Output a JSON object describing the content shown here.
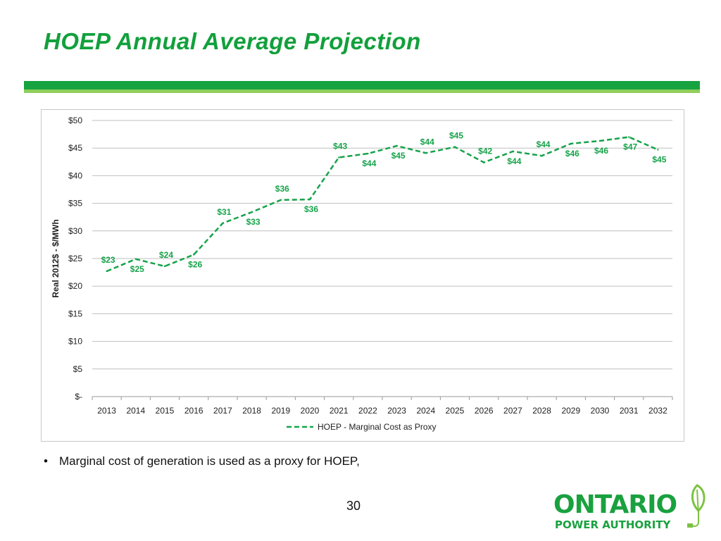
{
  "slide": {
    "title": "HOEP Annual Average Projection",
    "bullet": "Marginal cost of generation is used as a proxy for HOEP,",
    "page_number": "30"
  },
  "logo": {
    "word": "ONTARIO",
    "sub": "POWER AUTHORITY"
  },
  "colors": {
    "title": "#12a03c",
    "band_dark": "#17a33f",
    "band_light": "#8fce5a",
    "series": "#16a34a",
    "grid": "#bfbfbf"
  },
  "chart_data": {
    "type": "line",
    "title": "",
    "xlabel": "",
    "ylabel": "Real 2012$ - $/MWh",
    "categories": [
      "2013",
      "2014",
      "2015",
      "2016",
      "2017",
      "2018",
      "2019",
      "2020",
      "2021",
      "2022",
      "2023",
      "2024",
      "2025",
      "2026",
      "2027",
      "2028",
      "2029",
      "2030",
      "2031",
      "2032"
    ],
    "series": [
      {
        "name": "HOEP - Marginal Cost as Proxy",
        "values": [
          22.7,
          24.9,
          23.6,
          25.7,
          31.4,
          33.4,
          35.6,
          35.7,
          43.3,
          44.0,
          45.4,
          44.1,
          45.2,
          42.4,
          44.4,
          43.6,
          45.8,
          46.3,
          47.0,
          44.7
        ],
        "labels": [
          "$23",
          "$25",
          "$24",
          "$26",
          "$31",
          "$33",
          "$36",
          "$36",
          "$43",
          "$44",
          "$45",
          "$44",
          "$45",
          "$42",
          "$44",
          "$44",
          "$46",
          "$46",
          "$47",
          "$45"
        ]
      }
    ],
    "ylim": [
      0,
      50
    ],
    "yticks": [
      0,
      5,
      10,
      15,
      20,
      25,
      30,
      35,
      40,
      45,
      50
    ],
    "ytick_labels": [
      "$-",
      "$5",
      "$10",
      "$15",
      "$20",
      "$25",
      "$30",
      "$35",
      "$40",
      "$45",
      "$50"
    ],
    "grid": true,
    "line_style": "dashed",
    "legend_position": "bottom"
  }
}
